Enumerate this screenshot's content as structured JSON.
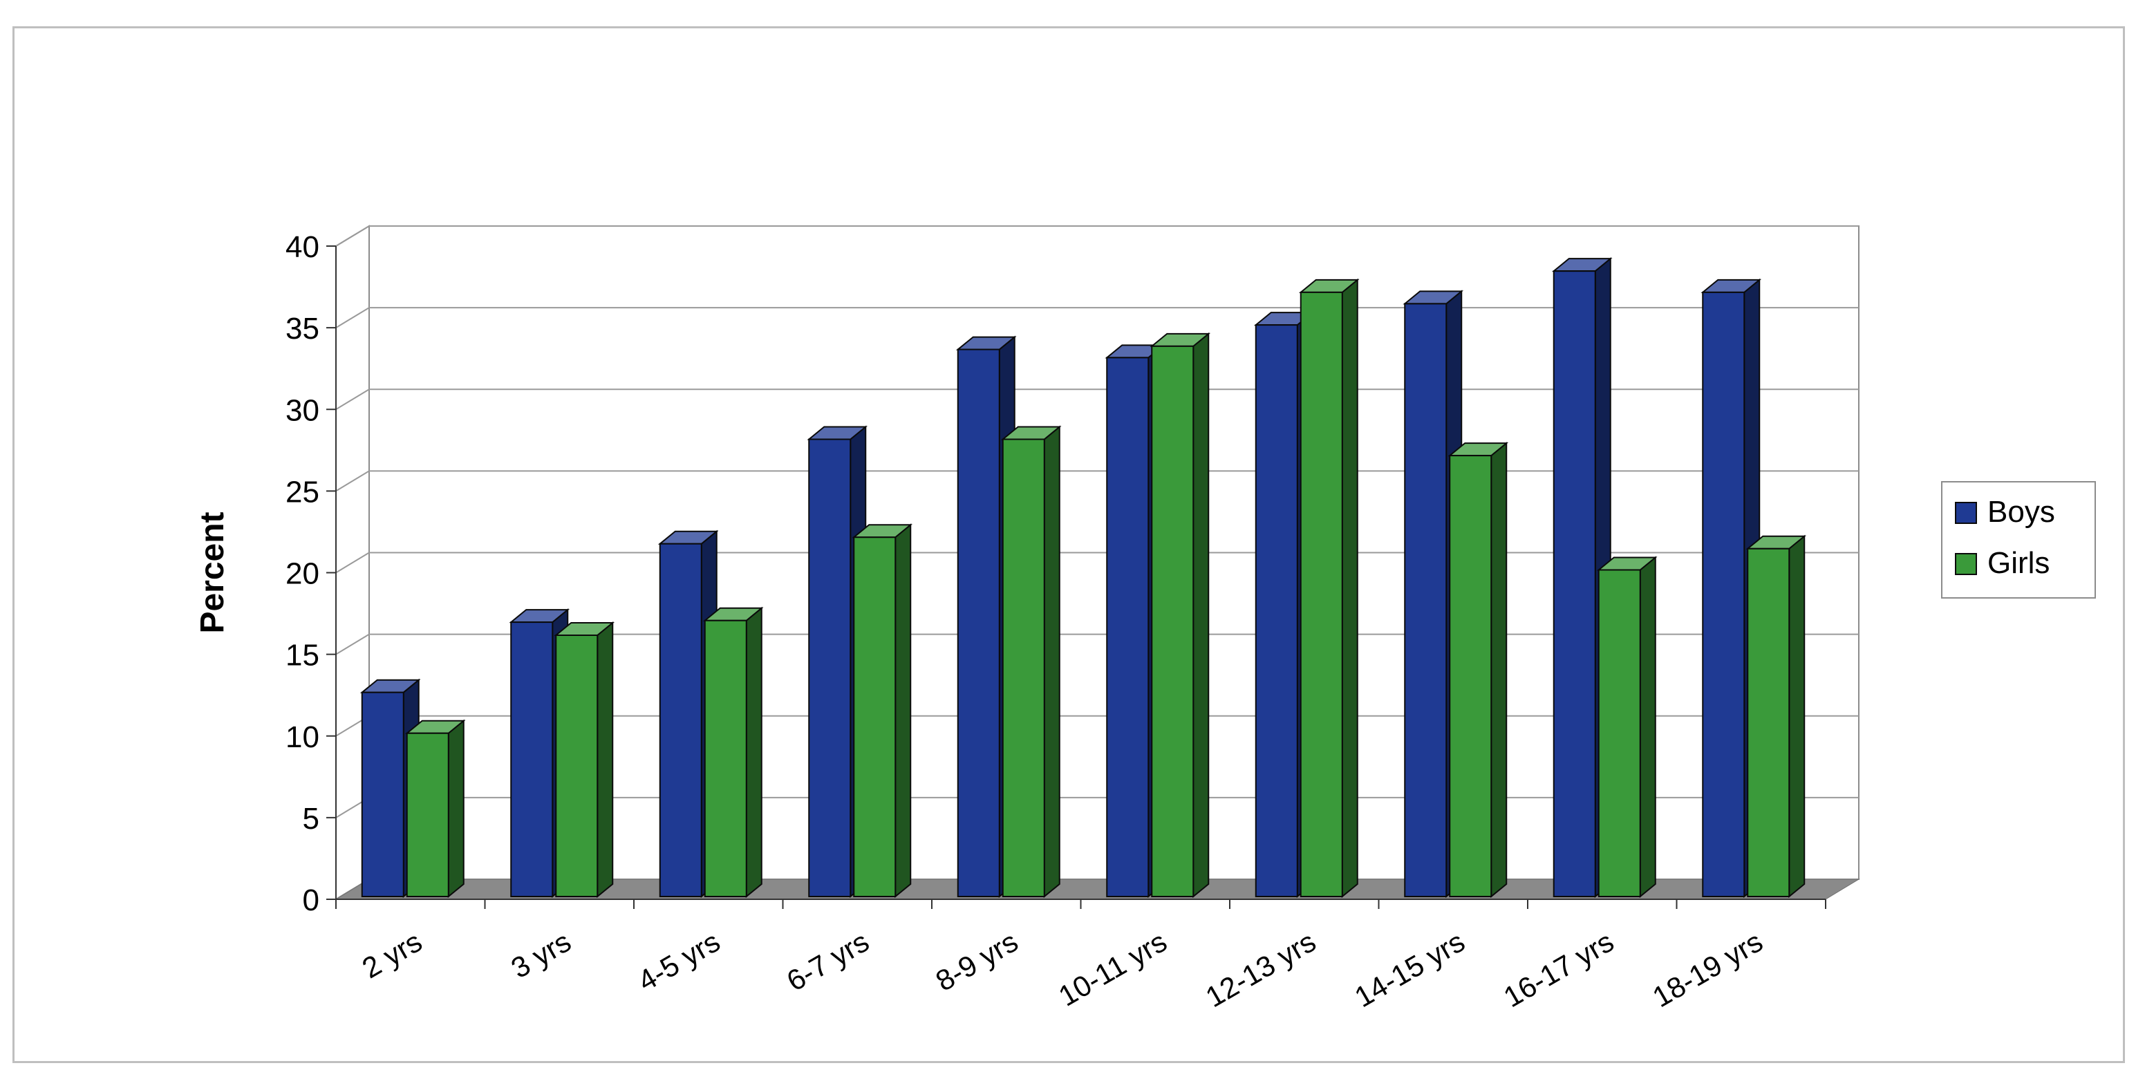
{
  "page": {
    "title": ""
  },
  "chart_data": {
    "type": "bar",
    "title": "",
    "xlabel": "",
    "ylabel": "Percent",
    "ylim": [
      0,
      40
    ],
    "yticks": [
      "0",
      "5",
      "10",
      "15",
      "20",
      "25",
      "30",
      "35",
      "40"
    ],
    "grid": true,
    "legend_position": "right",
    "categories": [
      "2 yrs",
      "3 yrs",
      "4-5 yrs",
      "6-7 yrs",
      "8-9 yrs",
      "10-11 yrs",
      "12-13 yrs",
      "14-15 yrs",
      "16-17 yrs",
      "18-19 yrs"
    ],
    "series": [
      {
        "name": "Boys",
        "color": "#1f3a93",
        "values": [
          12.5,
          16.8,
          21.6,
          28.0,
          33.5,
          33.0,
          35.0,
          36.3,
          38.3,
          37.0
        ]
      },
      {
        "name": "Girls",
        "color": "#3a9a3a",
        "values": [
          10.0,
          16.0,
          16.9,
          22.0,
          28.0,
          33.7,
          37.0,
          27.0,
          20.0,
          21.3
        ]
      }
    ]
  }
}
